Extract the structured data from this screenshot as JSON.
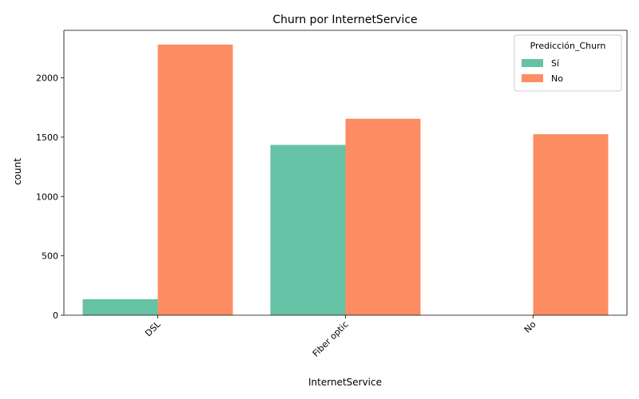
{
  "chart_data": {
    "type": "bar",
    "title": "Churn por InternetService",
    "xlabel": "InternetService",
    "ylabel": "count",
    "categories": [
      "DSL",
      "Fiber optic",
      "No"
    ],
    "series": [
      {
        "name": "Sí",
        "values": [
          135,
          1435,
          0
        ],
        "color": "#66c2a5"
      },
      {
        "name": "No",
        "values": [
          2280,
          1655,
          1525
        ],
        "color": "#fc8d62"
      }
    ],
    "ylim": [
      0,
      2400
    ],
    "yticks": [
      0,
      500,
      1000,
      1500,
      2000
    ],
    "legend": {
      "title": "Predicción_Churn",
      "placement": "top-right"
    },
    "grid": false
  }
}
